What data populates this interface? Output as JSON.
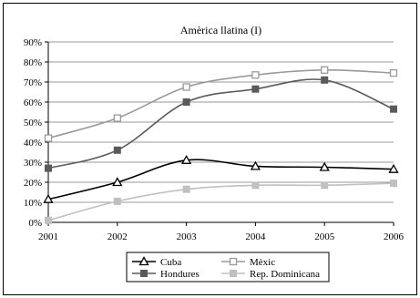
{
  "chart_data": {
    "type": "line",
    "title": "Amèrica llatina (I)",
    "xlabel": "",
    "ylabel": "",
    "x": [
      "2001",
      "2002",
      "2003",
      "2004",
      "2005",
      "2006"
    ],
    "ylim": [
      0,
      90
    ],
    "yticks": [
      "0%",
      "10%",
      "20%",
      "30%",
      "40%",
      "50%",
      "60%",
      "70%",
      "80%",
      "90%"
    ],
    "grid": true,
    "legend_position": "bottom",
    "series": [
      {
        "name": "Cuba",
        "values": [
          11.5,
          20,
          31,
          28,
          27.5,
          26.5
        ],
        "color": "#000000",
        "marker": "triangle-open"
      },
      {
        "name": "Mèxic",
        "values": [
          42,
          52,
          67.5,
          73.5,
          76,
          74.5
        ],
        "color": "#9a9a9a",
        "marker": "square-open"
      },
      {
        "name": "Hondures",
        "values": [
          27,
          36,
          60,
          66.5,
          71,
          56.5
        ],
        "color": "#5a5a5a",
        "marker": "square-filled"
      },
      {
        "name": "Rep. Dominicana",
        "values": [
          1,
          10.5,
          16.5,
          18.5,
          18.5,
          19.5
        ],
        "color": "#c0c0c0",
        "marker": "square-filled"
      }
    ]
  }
}
